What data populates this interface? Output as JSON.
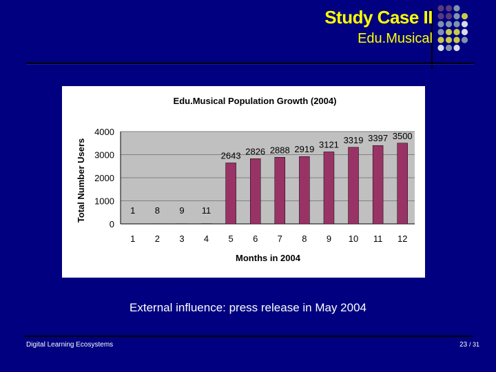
{
  "slide": {
    "title": "Study Case II",
    "subtitle": "Edu.Musical",
    "caption": "External influence: press release in May 2004",
    "footer_left": "Digital Learning Ecosystems",
    "page_current": "23",
    "page_total": "/ 31"
  },
  "colors": {
    "background": "#000080",
    "title": "#FFFF00",
    "bar": "#993366",
    "plot_area": "#C0C0C0",
    "dot_purple": "#5B3A7A",
    "dot_grey": "#7F93AE",
    "dot_yellow": "#C8C84A",
    "dot_white": "#D8DCE8"
  },
  "chart_data": {
    "type": "bar",
    "title": "Edu.Musical Population Growth (2004)",
    "xlabel": "Months in 2004",
    "ylabel": "Total Number Users",
    "categories": [
      "1",
      "2",
      "3",
      "4",
      "5",
      "6",
      "7",
      "8",
      "9",
      "10",
      "11",
      "12"
    ],
    "values": [
      1,
      8,
      9,
      11,
      2643,
      2826,
      2888,
      2919,
      3121,
      3319,
      3397,
      3500
    ],
    "ylim": [
      0,
      4000
    ],
    "yticks": [
      0,
      1000,
      2000,
      3000,
      4000
    ],
    "grid": true,
    "legend": "none"
  }
}
